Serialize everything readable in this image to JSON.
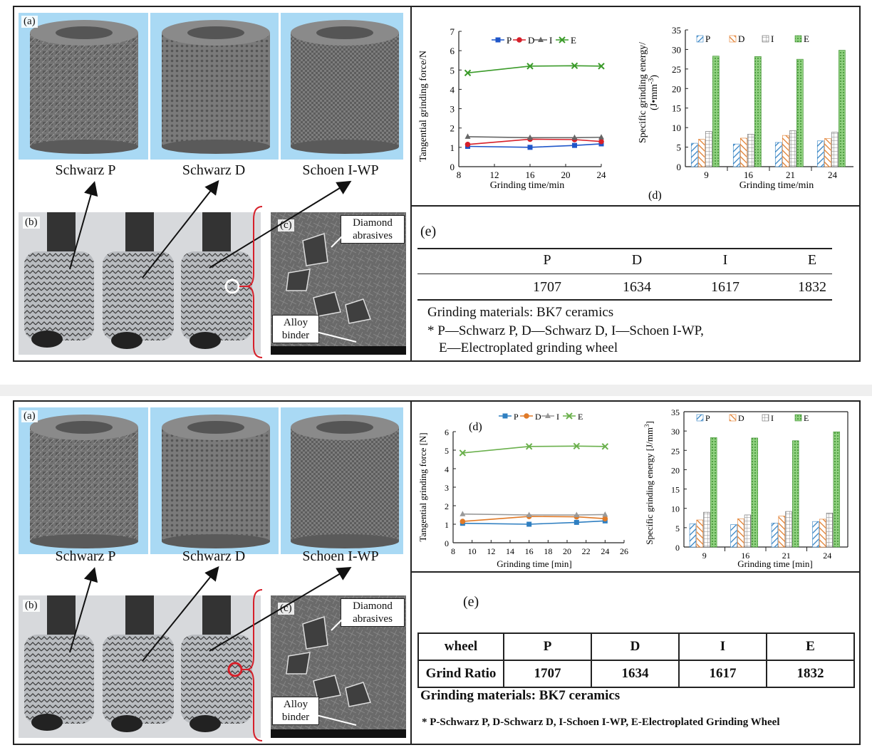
{
  "panel_labels": {
    "a": "(a)",
    "b": "(b)",
    "c": "(c)",
    "d": "(d)",
    "e": "(e)"
  },
  "structures": [
    "Schwarz P",
    "Schwarz D",
    "Schoen I-WP"
  ],
  "sem": {
    "diamond_label_1": "Diamond",
    "diamond_label_2": "abrasives",
    "alloy_label_1": "Alloy",
    "alloy_label_2": "binder"
  },
  "colors": {
    "sky": "#a9d9f4",
    "lattice": "#6e6e6e",
    "accent_red": "#d6202a"
  },
  "top_figure": {
    "chart_d1": {
      "ylabel": "Tangential grinding force/N",
      "xlabel": "Grinding time/min",
      "legend": [
        "P",
        "D",
        "I",
        "E"
      ]
    },
    "chart_d2": {
      "ylabel_1": "Specific grinding energy/",
      "ylabel_2": "(J•mm",
      "ylabel_sup": "-3",
      "ylabel_3": ")",
      "xlabel": "Grinding time/min",
      "legend": [
        "P",
        "D",
        "I",
        "E"
      ]
    },
    "table": {
      "headers": [
        "P",
        "D",
        "I",
        "E"
      ],
      "values": [
        "1707",
        "1634",
        "1617",
        "1832"
      ],
      "materials": "Grinding materials: BK7 ceramics",
      "note_line1": "* P—Schwarz P, D—Schwarz D, I—Schoen I-WP,",
      "note_line2": "E—Electroplated grinding wheel"
    }
  },
  "bottom_figure": {
    "chart_d1": {
      "ylabel": "Tangential grinding force [N]",
      "xlabel": "Grinding time [min]",
      "legend": [
        "P",
        "D",
        "I",
        "E"
      ]
    },
    "chart_d2": {
      "ylabel_1": "Specific grinding energy [J/mm",
      "ylabel_sup": "3",
      "ylabel_3": "]",
      "xlabel": "Grinding time [min]",
      "legend": [
        "P",
        "D",
        "I",
        "E"
      ]
    },
    "table": {
      "header_label": "wheel",
      "row_label": "Grind Ratio",
      "headers": [
        "P",
        "D",
        "I",
        "E"
      ],
      "values": [
        "1707",
        "1634",
        "1617",
        "1832"
      ],
      "materials": "Grinding materials: BK7 ceramics",
      "note": "* P-Schwarz P, D-Schwarz D, I-Schoen I-WP, E-Electroplated Grinding Wheel"
    }
  },
  "chart_data": [
    {
      "type": "line",
      "x": [
        9,
        16,
        21,
        24
      ],
      "xlim": [
        8,
        24
      ],
      "xticks": [
        8,
        12,
        16,
        20,
        24
      ],
      "ylim": [
        0,
        7
      ],
      "yticks": [
        0,
        1,
        2,
        3,
        4,
        5,
        6,
        7
      ],
      "series": [
        {
          "name": "P",
          "values": [
            1.05,
            1.0,
            1.1,
            1.18
          ],
          "color": "#1f56c9",
          "marker": "square"
        },
        {
          "name": "D",
          "values": [
            1.15,
            1.42,
            1.4,
            1.3
          ],
          "color": "#d6202a",
          "marker": "circle"
        },
        {
          "name": "I",
          "values": [
            1.55,
            1.5,
            1.5,
            1.52
          ],
          "color": "#666666",
          "marker": "triangle"
        },
        {
          "name": "E",
          "values": [
            4.85,
            5.2,
            5.22,
            5.2
          ],
          "color": "#3b9b2a",
          "marker": "x"
        }
      ]
    },
    {
      "type": "bar",
      "categories": [
        "9",
        "16",
        "21",
        "24"
      ],
      "ylim": [
        0,
        35
      ],
      "yticks": [
        0,
        5,
        10,
        15,
        20,
        25,
        30,
        35
      ],
      "series": [
        {
          "name": "P",
          "values": [
            6.0,
            5.8,
            6.2,
            6.6
          ],
          "color": "#2f7fc1"
        },
        {
          "name": "D",
          "values": [
            7.0,
            7.3,
            8.0,
            7.2
          ],
          "color": "#e07a28"
        },
        {
          "name": "I",
          "values": [
            9.0,
            8.3,
            9.2,
            8.8
          ],
          "color": "#888888"
        },
        {
          "name": "E",
          "values": [
            28.3,
            28.2,
            27.5,
            29.8
          ],
          "color": "#4aa63a"
        }
      ]
    },
    {
      "type": "line",
      "x": [
        9,
        16,
        21,
        24
      ],
      "xlim": [
        8,
        26
      ],
      "xticks": [
        8,
        10,
        12,
        14,
        16,
        18,
        20,
        22,
        24,
        26
      ],
      "ylim": [
        0,
        6
      ],
      "yticks": [
        0,
        1,
        2,
        3,
        4,
        5,
        6
      ],
      "series": [
        {
          "name": "P",
          "values": [
            1.05,
            1.0,
            1.1,
            1.18
          ],
          "color": "#2f7fc1",
          "marker": "square"
        },
        {
          "name": "D",
          "values": [
            1.15,
            1.42,
            1.4,
            1.3
          ],
          "color": "#e07a28",
          "marker": "circle"
        },
        {
          "name": "I",
          "values": [
            1.55,
            1.5,
            1.5,
            1.52
          ],
          "color": "#999999",
          "marker": "triangle"
        },
        {
          "name": "E",
          "values": [
            4.85,
            5.2,
            5.22,
            5.2
          ],
          "color": "#6ab04c",
          "marker": "x"
        }
      ]
    },
    {
      "type": "bar",
      "categories": [
        "9",
        "16",
        "21",
        "24"
      ],
      "ylim": [
        0,
        35
      ],
      "yticks": [
        0,
        5,
        10,
        15,
        20,
        25,
        30,
        35
      ],
      "series": [
        {
          "name": "P",
          "values": [
            6.0,
            5.8,
            6.2,
            6.6
          ],
          "color": "#2f7fc1"
        },
        {
          "name": "D",
          "values": [
            7.0,
            7.3,
            8.0,
            7.2
          ],
          "color": "#e07a28"
        },
        {
          "name": "I",
          "values": [
            9.0,
            8.3,
            9.2,
            8.8
          ],
          "color": "#888888"
        },
        {
          "name": "E",
          "values": [
            28.3,
            28.2,
            27.5,
            29.8
          ],
          "color": "#6ab04c"
        }
      ]
    }
  ]
}
